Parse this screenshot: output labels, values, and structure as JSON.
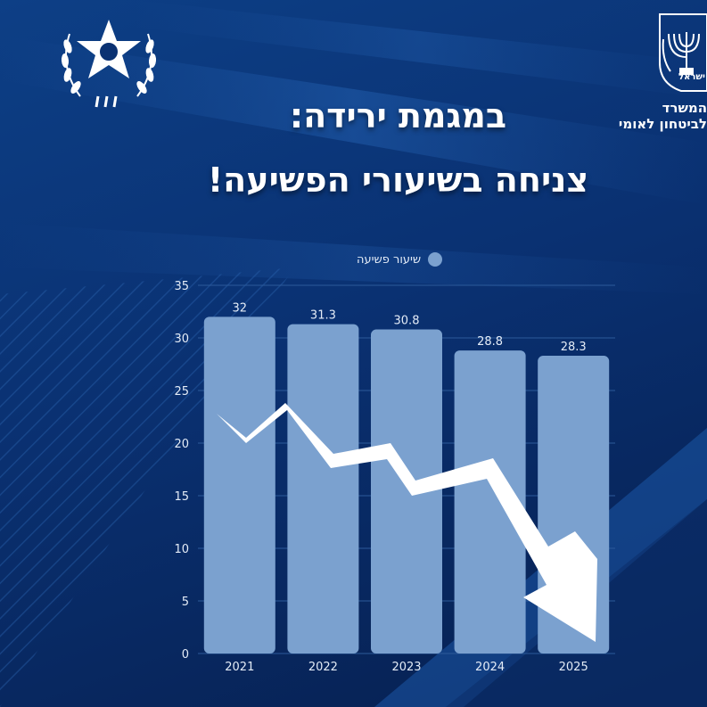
{
  "title": {
    "line1": "במגמת ירידה:",
    "line2": "צניחה בשיעורי הפשיעה!"
  },
  "ministry": {
    "line1": "המשרד",
    "line2": "לביטחון לאומי",
    "emblem_text": "ישראל"
  },
  "colors": {
    "background": "#0a3172",
    "bar": "#7ba1cf",
    "text": "#ffffff",
    "grid": "#2c5a9a"
  },
  "icons": {
    "left_logo": "police-star-emblem-icon",
    "right_logo": "state-emblem-menorah-icon",
    "trend": "down-trend-arrow-icon"
  },
  "chart_data": {
    "type": "bar",
    "categories": [
      "2021",
      "2022",
      "2023",
      "2024",
      "2025"
    ],
    "series": [
      {
        "name": "שיעור פשיעה",
        "values": [
          32,
          31.3,
          30.8,
          28.8,
          28.3
        ]
      }
    ],
    "data_labels": [
      "32",
      "31.3",
      "30.8",
      "28.8",
      "28.3"
    ],
    "yticks": [
      0,
      5,
      10,
      15,
      20,
      25,
      30,
      35
    ],
    "ylim": [
      0,
      35
    ],
    "grid": true,
    "legend": "top-center"
  }
}
